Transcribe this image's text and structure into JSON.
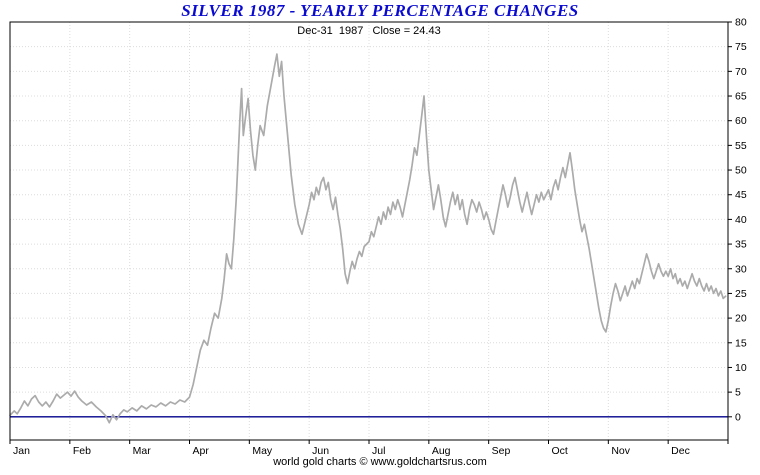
{
  "chart_data": {
    "type": "line",
    "title": "SILVER 1987 - YEARLY PERCENTAGE CHANGES",
    "subtitle": "Dec-31  1987   Close = 24.43",
    "footer": "world gold charts © www.goldchartsrus.com",
    "title_color": "#0b0bd0",
    "line_color": "#ababab",
    "zero_line_color": "#00008b",
    "grid_color": "#dcdcdc",
    "axis_color": "#000000",
    "grid": true,
    "legend_position": "none",
    "y_axis_side": "right",
    "ylim": [
      -4.7,
      80
    ],
    "y_ticks": [
      0,
      5,
      10,
      15,
      20,
      25,
      30,
      35,
      40,
      45,
      50,
      55,
      60,
      65,
      70,
      75,
      80
    ],
    "x_tick_labels": [
      "Jan",
      "Feb",
      "Mar",
      "Apr",
      "May",
      "Jun",
      "Jul",
      "Aug",
      "Sep",
      "Oct",
      "Nov",
      "Dec"
    ],
    "xlim_months": [
      0,
      12
    ],
    "close_value": 24.43,
    "close_date": "Dec-31 1987",
    "series": [
      {
        "name": "Silver yearly percentage change 1987",
        "points": [
          [
            0.0,
            0.3
          ],
          [
            0.07,
            1.2
          ],
          [
            0.12,
            0.6
          ],
          [
            0.18,
            1.8
          ],
          [
            0.24,
            3.2
          ],
          [
            0.3,
            2.2
          ],
          [
            0.36,
            3.6
          ],
          [
            0.42,
            4.3
          ],
          [
            0.48,
            3.0
          ],
          [
            0.54,
            2.2
          ],
          [
            0.6,
            3.0
          ],
          [
            0.66,
            2.0
          ],
          [
            0.72,
            3.2
          ],
          [
            0.78,
            4.6
          ],
          [
            0.84,
            3.8
          ],
          [
            0.9,
            4.4
          ],
          [
            0.96,
            5.0
          ],
          [
            1.02,
            4.2
          ],
          [
            1.08,
            5.2
          ],
          [
            1.14,
            4.0
          ],
          [
            1.2,
            3.2
          ],
          [
            1.28,
            2.4
          ],
          [
            1.36,
            3.0
          ],
          [
            1.44,
            2.0
          ],
          [
            1.52,
            1.2
          ],
          [
            1.6,
            0.2
          ],
          [
            1.66,
            -1.2
          ],
          [
            1.72,
            0.4
          ],
          [
            1.78,
            -0.6
          ],
          [
            1.84,
            0.6
          ],
          [
            1.9,
            1.4
          ],
          [
            1.96,
            1.0
          ],
          [
            2.04,
            1.8
          ],
          [
            2.12,
            1.2
          ],
          [
            2.2,
            2.2
          ],
          [
            2.28,
            1.6
          ],
          [
            2.36,
            2.4
          ],
          [
            2.44,
            2.0
          ],
          [
            2.52,
            2.8
          ],
          [
            2.6,
            2.2
          ],
          [
            2.68,
            3.0
          ],
          [
            2.76,
            2.6
          ],
          [
            2.84,
            3.4
          ],
          [
            2.92,
            3.0
          ],
          [
            3.0,
            4.0
          ],
          [
            3.06,
            6.5
          ],
          [
            3.12,
            10.0
          ],
          [
            3.18,
            13.5
          ],
          [
            3.24,
            15.5
          ],
          [
            3.3,
            14.5
          ],
          [
            3.36,
            18.0
          ],
          [
            3.42,
            21.0
          ],
          [
            3.48,
            20.0
          ],
          [
            3.54,
            24.0
          ],
          [
            3.58,
            28.0
          ],
          [
            3.62,
            33.0
          ],
          [
            3.66,
            31.0
          ],
          [
            3.7,
            30.0
          ],
          [
            3.74,
            36.0
          ],
          [
            3.78,
            44.0
          ],
          [
            3.81,
            52.0
          ],
          [
            3.84,
            60.0
          ],
          [
            3.87,
            66.5
          ],
          [
            3.9,
            57.0
          ],
          [
            3.94,
            61.0
          ],
          [
            3.98,
            64.5
          ],
          [
            4.02,
            58.0
          ],
          [
            4.06,
            53.0
          ],
          [
            4.1,
            50.0
          ],
          [
            4.14,
            55.0
          ],
          [
            4.18,
            59.0
          ],
          [
            4.24,
            57.0
          ],
          [
            4.3,
            63.0
          ],
          [
            4.36,
            67.0
          ],
          [
            4.42,
            71.0
          ],
          [
            4.46,
            73.5
          ],
          [
            4.5,
            69.0
          ],
          [
            4.54,
            72.0
          ],
          [
            4.58,
            65.0
          ],
          [
            4.64,
            57.0
          ],
          [
            4.7,
            49.0
          ],
          [
            4.76,
            43.0
          ],
          [
            4.82,
            39.0
          ],
          [
            4.88,
            37.0
          ],
          [
            4.94,
            40.0
          ],
          [
            5.0,
            43.0
          ],
          [
            5.04,
            45.5
          ],
          [
            5.08,
            44.0
          ],
          [
            5.12,
            46.5
          ],
          [
            5.16,
            45.0
          ],
          [
            5.2,
            47.5
          ],
          [
            5.24,
            48.5
          ],
          [
            5.28,
            46.0
          ],
          [
            5.32,
            47.5
          ],
          [
            5.36,
            44.0
          ],
          [
            5.4,
            42.0
          ],
          [
            5.44,
            44.5
          ],
          [
            5.48,
            41.0
          ],
          [
            5.52,
            38.0
          ],
          [
            5.56,
            34.0
          ],
          [
            5.6,
            29.0
          ],
          [
            5.64,
            27.0
          ],
          [
            5.68,
            29.5
          ],
          [
            5.72,
            31.5
          ],
          [
            5.76,
            30.0
          ],
          [
            5.8,
            32.0
          ],
          [
            5.84,
            33.5
          ],
          [
            5.88,
            32.5
          ],
          [
            5.92,
            34.5
          ],
          [
            5.96,
            35.0
          ],
          [
            6.0,
            35.5
          ],
          [
            6.04,
            37.5
          ],
          [
            6.08,
            36.5
          ],
          [
            6.12,
            38.5
          ],
          [
            6.16,
            40.5
          ],
          [
            6.2,
            39.0
          ],
          [
            6.24,
            41.5
          ],
          [
            6.28,
            40.0
          ],
          [
            6.32,
            42.5
          ],
          [
            6.36,
            41.0
          ],
          [
            6.4,
            43.5
          ],
          [
            6.44,
            42.0
          ],
          [
            6.48,
            44.0
          ],
          [
            6.52,
            42.5
          ],
          [
            6.56,
            40.5
          ],
          [
            6.6,
            43.0
          ],
          [
            6.64,
            45.5
          ],
          [
            6.68,
            48.0
          ],
          [
            6.72,
            51.0
          ],
          [
            6.76,
            54.5
          ],
          [
            6.8,
            53.0
          ],
          [
            6.84,
            57.0
          ],
          [
            6.88,
            61.0
          ],
          [
            6.92,
            65.0
          ],
          [
            6.96,
            57.0
          ],
          [
            7.0,
            50.0
          ],
          [
            7.04,
            46.0
          ],
          [
            7.08,
            42.0
          ],
          [
            7.12,
            44.5
          ],
          [
            7.16,
            47.0
          ],
          [
            7.2,
            44.0
          ],
          [
            7.24,
            40.5
          ],
          [
            7.28,
            38.5
          ],
          [
            7.32,
            41.0
          ],
          [
            7.36,
            43.5
          ],
          [
            7.4,
            45.5
          ],
          [
            7.44,
            43.0
          ],
          [
            7.48,
            45.0
          ],
          [
            7.52,
            42.0
          ],
          [
            7.56,
            44.0
          ],
          [
            7.6,
            41.0
          ],
          [
            7.64,
            39.0
          ],
          [
            7.68,
            42.0
          ],
          [
            7.72,
            44.0
          ],
          [
            7.76,
            43.0
          ],
          [
            7.8,
            41.5
          ],
          [
            7.84,
            43.5
          ],
          [
            7.88,
            42.0
          ],
          [
            7.92,
            40.0
          ],
          [
            7.96,
            41.5
          ],
          [
            8.0,
            40.0
          ],
          [
            8.04,
            38.0
          ],
          [
            8.08,
            37.0
          ],
          [
            8.12,
            39.5
          ],
          [
            8.16,
            42.0
          ],
          [
            8.2,
            44.5
          ],
          [
            8.24,
            47.0
          ],
          [
            8.28,
            45.0
          ],
          [
            8.32,
            42.5
          ],
          [
            8.36,
            44.5
          ],
          [
            8.4,
            47.0
          ],
          [
            8.44,
            48.5
          ],
          [
            8.48,
            46.0
          ],
          [
            8.52,
            43.5
          ],
          [
            8.56,
            41.5
          ],
          [
            8.6,
            43.5
          ],
          [
            8.64,
            45.5
          ],
          [
            8.68,
            43.0
          ],
          [
            8.72,
            41.0
          ],
          [
            8.76,
            43.0
          ],
          [
            8.8,
            45.0
          ],
          [
            8.84,
            43.5
          ],
          [
            8.88,
            45.5
          ],
          [
            8.92,
            44.0
          ],
          [
            8.96,
            45.0
          ],
          [
            9.0,
            46.0
          ],
          [
            9.04,
            44.0
          ],
          [
            9.08,
            46.5
          ],
          [
            9.12,
            48.0
          ],
          [
            9.16,
            46.0
          ],
          [
            9.2,
            48.5
          ],
          [
            9.24,
            50.5
          ],
          [
            9.28,
            48.5
          ],
          [
            9.32,
            51.0
          ],
          [
            9.36,
            53.5
          ],
          [
            9.4,
            50.0
          ],
          [
            9.44,
            46.0
          ],
          [
            9.48,
            43.0
          ],
          [
            9.52,
            40.0
          ],
          [
            9.56,
            37.5
          ],
          [
            9.6,
            39.0
          ],
          [
            9.64,
            36.5
          ],
          [
            9.68,
            34.0
          ],
          [
            9.72,
            31.0
          ],
          [
            9.76,
            28.0
          ],
          [
            9.8,
            25.0
          ],
          [
            9.84,
            22.0
          ],
          [
            9.88,
            19.5
          ],
          [
            9.92,
            18.0
          ],
          [
            9.96,
            17.2
          ],
          [
            10.0,
            19.5
          ],
          [
            10.04,
            22.5
          ],
          [
            10.08,
            25.0
          ],
          [
            10.12,
            27.0
          ],
          [
            10.16,
            25.5
          ],
          [
            10.2,
            23.5
          ],
          [
            10.24,
            25.0
          ],
          [
            10.28,
            26.5
          ],
          [
            10.32,
            24.5
          ],
          [
            10.36,
            26.0
          ],
          [
            10.4,
            27.5
          ],
          [
            10.44,
            26.0
          ],
          [
            10.48,
            28.0
          ],
          [
            10.52,
            27.0
          ],
          [
            10.56,
            29.0
          ],
          [
            10.6,
            31.0
          ],
          [
            10.64,
            33.0
          ],
          [
            10.68,
            31.5
          ],
          [
            10.72,
            29.5
          ],
          [
            10.76,
            28.0
          ],
          [
            10.8,
            29.5
          ],
          [
            10.84,
            31.0
          ],
          [
            10.88,
            29.5
          ],
          [
            10.92,
            28.5
          ],
          [
            10.96,
            29.5
          ],
          [
            11.0,
            28.5
          ],
          [
            11.04,
            30.0
          ],
          [
            11.08,
            28.0
          ],
          [
            11.12,
            29.0
          ],
          [
            11.16,
            27.0
          ],
          [
            11.2,
            28.0
          ],
          [
            11.24,
            26.5
          ],
          [
            11.28,
            27.5
          ],
          [
            11.32,
            26.0
          ],
          [
            11.36,
            27.5
          ],
          [
            11.4,
            29.0
          ],
          [
            11.44,
            27.5
          ],
          [
            11.48,
            26.5
          ],
          [
            11.52,
            28.0
          ],
          [
            11.56,
            26.5
          ],
          [
            11.6,
            25.5
          ],
          [
            11.64,
            27.0
          ],
          [
            11.68,
            25.5
          ],
          [
            11.72,
            26.5
          ],
          [
            11.76,
            25.0
          ],
          [
            11.8,
            26.0
          ],
          [
            11.84,
            24.5
          ],
          [
            11.88,
            25.5
          ],
          [
            11.92,
            24.0
          ],
          [
            11.96,
            24.43
          ]
        ]
      }
    ]
  }
}
